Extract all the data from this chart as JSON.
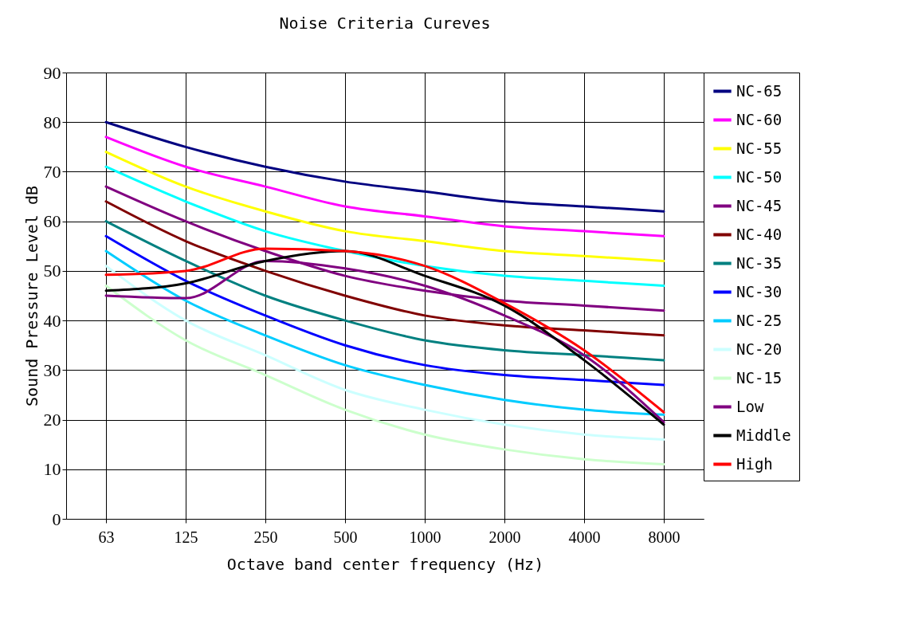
{
  "chart_data": {
    "type": "line",
    "title": "Noise Criteria Cureves",
    "xlabel": "Octave band center frequency (Hz)",
    "ylabel": "Sound Pressure Level dB",
    "categories": [
      "63",
      "125",
      "250",
      "500",
      "1000",
      "2000",
      "4000",
      "8000"
    ],
    "ylim": [
      0,
      90
    ],
    "yticks": [
      0,
      10,
      20,
      30,
      40,
      50,
      60,
      70,
      80,
      90
    ],
    "grid": true,
    "legend": "right",
    "series": [
      {
        "name": "NC-65",
        "color": "#000080",
        "values": [
          80,
          75,
          71,
          68,
          66,
          64,
          63,
          62
        ]
      },
      {
        "name": "NC-60",
        "color": "#ff00ff",
        "values": [
          77,
          71,
          67,
          63,
          61,
          59,
          58,
          57
        ]
      },
      {
        "name": "NC-55",
        "color": "#ffff00",
        "values": [
          74,
          67,
          62,
          58,
          56,
          54,
          53,
          52
        ]
      },
      {
        "name": "NC-50",
        "color": "#00ffff",
        "values": [
          71,
          64,
          58,
          54,
          51,
          49,
          48,
          47
        ]
      },
      {
        "name": "NC-45",
        "color": "#800080",
        "values": [
          67,
          60,
          54,
          49,
          46,
          44,
          43,
          42
        ]
      },
      {
        "name": "NC-40",
        "color": "#800000",
        "values": [
          64,
          56,
          50,
          45,
          41,
          39,
          38,
          37
        ]
      },
      {
        "name": "NC-35",
        "color": "#008080",
        "values": [
          60,
          52,
          45,
          40,
          36,
          34,
          33,
          32
        ]
      },
      {
        "name": "NC-30",
        "color": "#0000ff",
        "values": [
          57,
          48,
          41,
          35,
          31,
          29,
          28,
          27
        ]
      },
      {
        "name": "NC-25",
        "color": "#00ccff",
        "values": [
          54,
          44,
          37,
          31,
          27,
          24,
          22,
          21
        ]
      },
      {
        "name": "NC-20",
        "color": "#ccffff",
        "values": [
          51,
          40,
          33,
          26,
          22,
          19,
          17,
          16
        ]
      },
      {
        "name": "NC-15",
        "color": "#ccffcc",
        "values": [
          47,
          36,
          29,
          22,
          17,
          14,
          12,
          11
        ]
      },
      {
        "name": "Low",
        "color": "#800080",
        "values": [
          45,
          44.5,
          52,
          50.5,
          47,
          41,
          33,
          19.5
        ]
      },
      {
        "name": "Middle",
        "color": "#000000",
        "values": [
          46,
          47.5,
          52,
          54,
          49,
          43,
          32,
          19
        ]
      },
      {
        "name": "High",
        "color": "#ff0000",
        "values": [
          49.2,
          50,
          54.5,
          54,
          51,
          43.5,
          34,
          21.5
        ]
      }
    ]
  }
}
